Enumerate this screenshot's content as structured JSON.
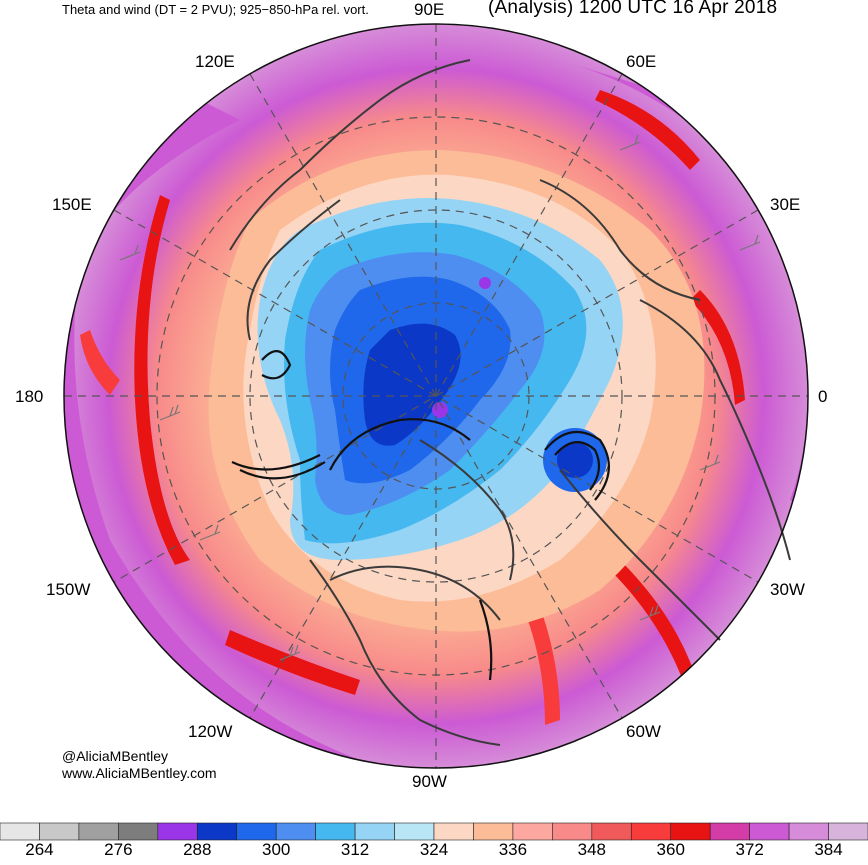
{
  "header": {
    "title_left": "Theta and wind (DT = 2 PVU); 925−850-hPa rel. vort.",
    "title_right": "(Analysis) 1200 UTC 16 Apr 2018"
  },
  "longitude_labels": {
    "e90": "90E",
    "e120": "120E",
    "e60": "60E",
    "e150": "150E",
    "e30": "30E",
    "deg180": "180",
    "deg0": "0",
    "w150": "150W",
    "w30": "30W",
    "w120": "120W",
    "w60": "60W",
    "w90": "90W"
  },
  "credits": {
    "handle": "@AliciaMBentley",
    "website": "www.AliciaMBentley.com"
  },
  "colorbar": {
    "colors": [
      "#e6e6e6",
      "#c8c8c8",
      "#a0a0a0",
      "#7d7d7d",
      "#9a36e8",
      "#0c38c8",
      "#1f68ec",
      "#4d8ef0",
      "#46b8f0",
      "#96d4f5",
      "#b8e6f5",
      "#fcd8c4",
      "#fcbc98",
      "#fca8a0",
      "#f88a8a",
      "#f05a5a",
      "#f83c3c",
      "#e81414",
      "#d43ca8",
      "#cc5ad4",
      "#d68cd8",
      "#d8b4dc"
    ],
    "labels": [
      "264",
      "276",
      "288",
      "300",
      "312",
      "324",
      "336",
      "348",
      "360",
      "372",
      "384"
    ]
  }
}
